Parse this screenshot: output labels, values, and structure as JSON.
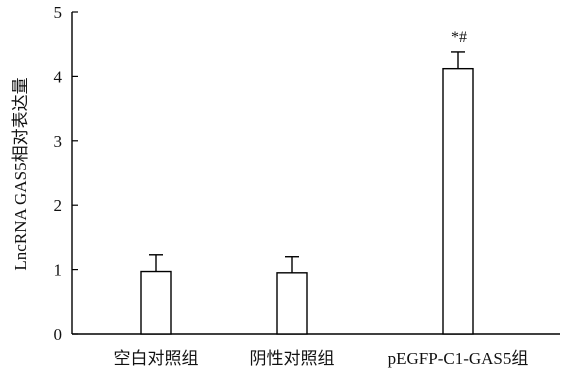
{
  "chart_data": {
    "type": "bar",
    "categories": [
      "空白对照组",
      "阴性对照组",
      "pEGFP-C1-GAS5组"
    ],
    "values": [
      0.97,
      0.95,
      4.12
    ],
    "errors": [
      0.26,
      0.25,
      0.26
    ],
    "annotations": [
      "",
      "",
      "*#"
    ],
    "ylabel": "LncRNA GAS5相对表达量",
    "xlabel": "",
    "ylim": [
      0,
      5
    ],
    "yticks": [
      0,
      1,
      2,
      3,
      4,
      5
    ],
    "ytick_labels": [
      "0",
      "1",
      "2",
      "3",
      "4",
      "5"
    ],
    "grid": false,
    "legend": "none",
    "colors": {
      "bar_fill": "#ffffff",
      "stroke": "#000000"
    }
  }
}
